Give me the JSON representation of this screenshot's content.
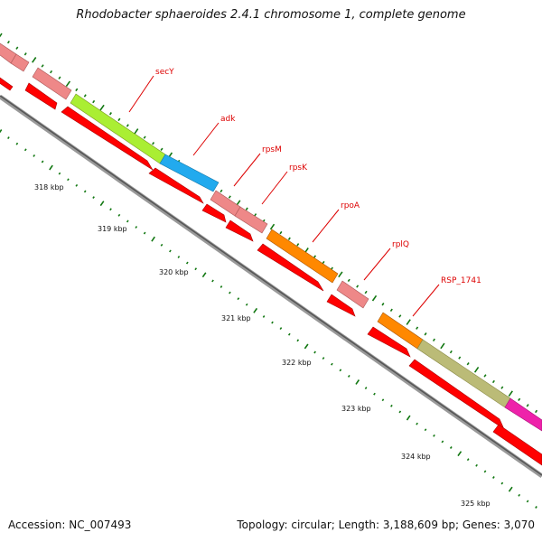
{
  "title": "Rhodobacter sphaeroides 2.4.1 chromosome 1, complete genome",
  "footer": {
    "accession": "Accession: NC_007493",
    "summary": "Topology: circular; Length: 3,188,609 bp; Genes: 3,070"
  },
  "scale": {
    "ticks": [
      {
        "label": "318 kbp"
      },
      {
        "label": "319 kbp"
      },
      {
        "label": "320 kbp"
      },
      {
        "label": "321 kbp"
      },
      {
        "label": "322 kbp"
      },
      {
        "label": "323 kbp"
      },
      {
        "label": "324 kbp"
      },
      {
        "label": "325 kbp"
      }
    ]
  },
  "genes": [
    {
      "name": "secY",
      "color": "#aaee33"
    },
    {
      "name": "adk",
      "color": "#22aaee"
    },
    {
      "name": "rpsM",
      "color": "#ee8888"
    },
    {
      "name": "rpsK",
      "color": "#ee8888"
    },
    {
      "name": "rpoA",
      "color": "#ff8800"
    },
    {
      "name": "rplQ",
      "color": "#ee8888"
    },
    {
      "name": "RSP_1741",
      "color": "#ff8800"
    }
  ],
  "colors": {
    "cds": "#ff0000",
    "rna_gene": "#ee8888",
    "backbone": "#888888",
    "ticks": "#117711",
    "label": "#dd0000",
    "khaki_gene": "#bbbb77",
    "magenta_gene": "#ee22aa"
  }
}
